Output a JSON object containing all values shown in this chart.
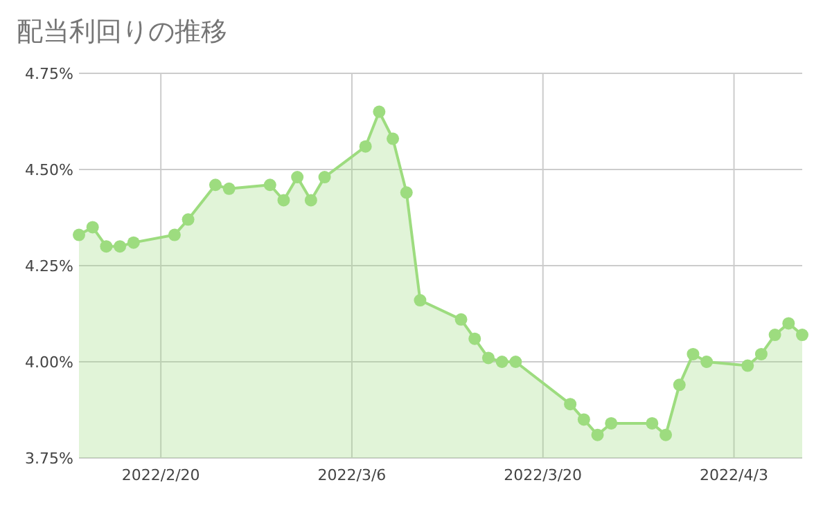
{
  "chart_data": {
    "type": "area",
    "title": "配当利回りの推移",
    "color": "#9ddc7f",
    "marker": "circle",
    "grid": true,
    "xlim": [
      "2022-02-14",
      "2022-04-08"
    ],
    "xticks": [
      {
        "value": "2022-02-20",
        "label": "2022/2/20"
      },
      {
        "value": "2022-03-06",
        "label": "2022/3/6"
      },
      {
        "value": "2022-03-20",
        "label": "2022/3/20"
      },
      {
        "value": "2022-04-03",
        "label": "2022/4/3"
      }
    ],
    "ylim": [
      3.75,
      4.75
    ],
    "yticks": [
      {
        "value": 3.75,
        "label": "3.75%"
      },
      {
        "value": 4.0,
        "label": "4.00%"
      },
      {
        "value": 4.25,
        "label": "4.25%"
      },
      {
        "value": 4.5,
        "label": "4.50%"
      },
      {
        "value": 4.75,
        "label": "4.75%"
      }
    ],
    "x": [
      "2022-02-14",
      "2022-02-15",
      "2022-02-16",
      "2022-02-17",
      "2022-02-18",
      "2022-02-21",
      "2022-02-22",
      "2022-02-24",
      "2022-02-25",
      "2022-02-28",
      "2022-03-01",
      "2022-03-02",
      "2022-03-03",
      "2022-03-04",
      "2022-03-07",
      "2022-03-08",
      "2022-03-09",
      "2022-03-10",
      "2022-03-11",
      "2022-03-14",
      "2022-03-15",
      "2022-03-16",
      "2022-03-17",
      "2022-03-18",
      "2022-03-22",
      "2022-03-23",
      "2022-03-24",
      "2022-03-25",
      "2022-03-28",
      "2022-03-29",
      "2022-03-30",
      "2022-03-31",
      "2022-04-01",
      "2022-04-04",
      "2022-04-05",
      "2022-04-06",
      "2022-04-07",
      "2022-04-08"
    ],
    "values": [
      4.33,
      4.35,
      4.3,
      4.3,
      4.31,
      4.33,
      4.37,
      4.46,
      4.45,
      4.46,
      4.42,
      4.48,
      4.42,
      4.48,
      4.56,
      4.65,
      4.58,
      4.44,
      4.16,
      4.11,
      4.06,
      4.01,
      4.0,
      4.0,
      3.89,
      3.85,
      3.81,
      3.84,
      3.84,
      3.81,
      3.94,
      4.02,
      4.0,
      3.99,
      4.02,
      4.07,
      4.1,
      4.07
    ]
  }
}
